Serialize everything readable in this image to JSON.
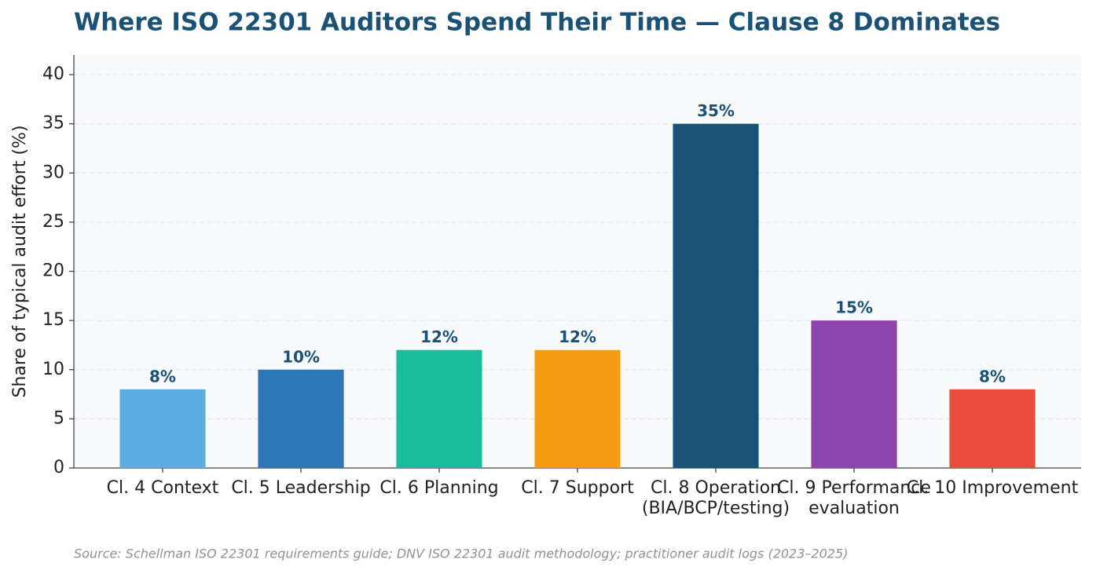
{
  "chart_data": {
    "type": "bar",
    "title": "Where ISO 22301 Auditors Spend Their Time — Clause 8 Dominates",
    "y_label": "Share of typical audit effort (%)",
    "source": "Source: Schellman ISO 22301 requirements guide; DNV ISO 22301 audit methodology; practitioner audit logs (2023–2025)",
    "categories": [
      "Cl. 4 Context",
      "Cl. 5 Leadership",
      "Cl. 6 Planning",
      "Cl. 7 Support",
      "Cl. 8 Operation\n(BIA/BCP/testing)",
      "Cl. 9 Performance\nevaluation",
      "Cl. 10 Improvement"
    ],
    "values": [
      8,
      10,
      12,
      12,
      35,
      15,
      8
    ],
    "value_labels": [
      "8%",
      "10%",
      "12%",
      "12%",
      "35%",
      "15%",
      "8%"
    ],
    "colors": [
      "#5dade2",
      "#2e75b6",
      "#1abc9c",
      "#f39c12",
      "#1a5276",
      "#8e44ad",
      "#e74c3c"
    ],
    "ylim": [
      0,
      42
    ],
    "yticks": [
      0,
      5,
      10,
      15,
      20,
      25,
      30,
      35,
      40
    ],
    "grid": true
  }
}
